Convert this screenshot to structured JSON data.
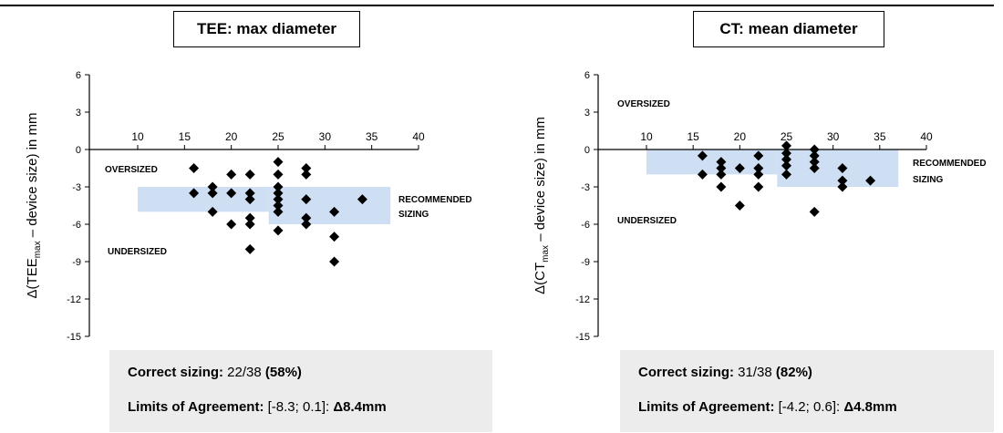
{
  "header_rule_color": "#000000",
  "marker_color": "#000000",
  "band_color": "#c9dcf2",
  "chart_data": [
    {
      "type": "scatter",
      "title": "TEE: max diameter",
      "ylabel_prefix": "Δ(TEE",
      "ylabel_sub": "max",
      "ylabel_suffix": " – device size) in mm",
      "xlim": [
        10,
        40
      ],
      "ylim": [
        -15,
        6
      ],
      "x_ticks": [
        "10",
        "15",
        "20",
        "25",
        "30",
        "35",
        "40"
      ],
      "y_ticks": [
        "6",
        "3",
        "0",
        "-3",
        "-6",
        "-9",
        "-12",
        "-15"
      ],
      "recommended_bands": [
        {
          "x": [
            10,
            24
          ],
          "y": [
            -5,
            -3
          ]
        },
        {
          "x": [
            24,
            37
          ],
          "y": [
            -6,
            -3
          ]
        }
      ],
      "annotations": {
        "oversized": "OVERSIZED",
        "undersized": "UNDERSIZED",
        "recommended_line1": "RECOMMENDED",
        "recommended_line2": "SIZING"
      },
      "points": [
        [
          16,
          -1.5
        ],
        [
          16,
          -3.5
        ],
        [
          18,
          -3
        ],
        [
          18,
          -3.5
        ],
        [
          18,
          -5
        ],
        [
          20,
          -2
        ],
        [
          20,
          -3.5
        ],
        [
          20,
          -6
        ],
        [
          22,
          -2
        ],
        [
          22,
          -3.5
        ],
        [
          22,
          -4
        ],
        [
          22,
          -5.5
        ],
        [
          22,
          -6
        ],
        [
          22,
          -8
        ],
        [
          25,
          -1
        ],
        [
          25,
          -2
        ],
        [
          25,
          -3
        ],
        [
          25,
          -3.5
        ],
        [
          25,
          -4
        ],
        [
          25,
          -4.5
        ],
        [
          25,
          -5
        ],
        [
          25,
          -6.5
        ],
        [
          28,
          -1.5
        ],
        [
          28,
          -2
        ],
        [
          28,
          -4
        ],
        [
          28,
          -5.5
        ],
        [
          28,
          -6
        ],
        [
          31,
          -5
        ],
        [
          31,
          -7
        ],
        [
          31,
          -9
        ],
        [
          34,
          -4
        ]
      ],
      "stats": {
        "correct_label": "Correct sizing:",
        "correct_value": " 22/38 ",
        "correct_pct": "(58%)",
        "loa_label": "Limits of Agreement:",
        "loa_value": " [-8.3; 0.1]: ",
        "loa_delta": "Δ8.4mm"
      }
    },
    {
      "type": "scatter",
      "title": "CT: mean diameter",
      "ylabel_prefix": "Δ(CT",
      "ylabel_sub": "max",
      "ylabel_suffix": " – device size) in mm",
      "xlim": [
        10,
        40
      ],
      "ylim": [
        -15,
        6
      ],
      "x_ticks": [
        "10",
        "15",
        "20",
        "25",
        "30",
        "35",
        "40"
      ],
      "y_ticks": [
        "6",
        "3",
        "0",
        "-3",
        "-6",
        "-9",
        "-12",
        "-15"
      ],
      "recommended_bands": [
        {
          "x": [
            10,
            24
          ],
          "y": [
            -2,
            0
          ]
        },
        {
          "x": [
            24,
            37
          ],
          "y": [
            -3,
            0
          ]
        }
      ],
      "annotations": {
        "oversized": "OVERSIZED",
        "undersized": "UNDERSIZED",
        "recommended_line1": "RECOMMENDED",
        "recommended_line2": "SIZING"
      },
      "points": [
        [
          16,
          -0.5
        ],
        [
          16,
          -2
        ],
        [
          18,
          -1
        ],
        [
          18,
          -1.5
        ],
        [
          18,
          -2
        ],
        [
          18,
          -3
        ],
        [
          20,
          -1.5
        ],
        [
          20,
          -4.5
        ],
        [
          22,
          -0.5
        ],
        [
          22,
          -1.5
        ],
        [
          22,
          -2
        ],
        [
          22,
          -3
        ],
        [
          25,
          0.3
        ],
        [
          25,
          -0.3
        ],
        [
          25,
          -0.8
        ],
        [
          25,
          -1.3
        ],
        [
          25,
          -2
        ],
        [
          28,
          0
        ],
        [
          28,
          -0.5
        ],
        [
          28,
          -1
        ],
        [
          28,
          -1.5
        ],
        [
          28,
          -5
        ],
        [
          31,
          -1.5
        ],
        [
          31,
          -2.5
        ],
        [
          31,
          -3
        ],
        [
          34,
          -2.5
        ]
      ],
      "stats": {
        "correct_label": "Correct sizing:",
        "correct_value": " 31/38 ",
        "correct_pct": "(82%)",
        "loa_label": "Limits of Agreement:",
        "loa_value": " [-4.2; 0.6]: ",
        "loa_delta": "Δ4.8mm"
      }
    }
  ]
}
